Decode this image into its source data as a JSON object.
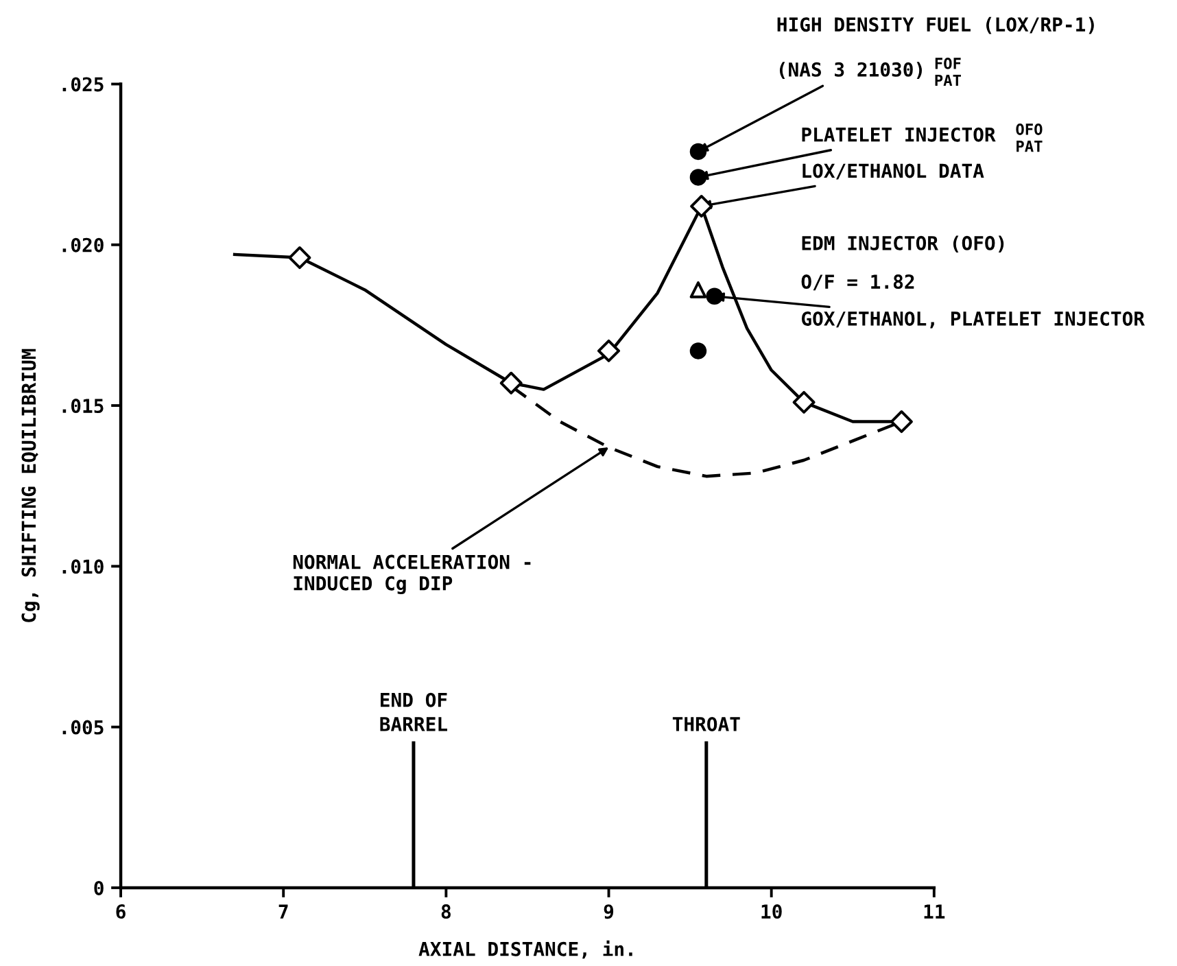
{
  "chart_data": {
    "type": "line",
    "xlabel": "AXIAL DISTANCE, in.",
    "ylabel": "Cg, SHIFTING EQUILIBRIUM",
    "xlim": [
      6,
      11
    ],
    "xticks": [
      6,
      7,
      8,
      9,
      10,
      11
    ],
    "ylim": [
      0,
      0.025
    ],
    "yticks": [
      {
        "value": 0,
        "label": "0"
      },
      {
        "value": 0.005,
        "label": ".005"
      },
      {
        "value": 0.01,
        "label": ".010"
      },
      {
        "value": 0.015,
        "label": ".015"
      },
      {
        "value": 0.02,
        "label": ".020"
      },
      {
        "value": 0.025,
        "label": ".025"
      }
    ],
    "grid": false,
    "series": [
      {
        "color": "#000000",
        "line_style": "solid",
        "marker": "none",
        "x": [
          6.7,
          7.1,
          7.5,
          8.0,
          8.4,
          8.6,
          9.0,
          9.3,
          9.57
        ],
        "values": [
          0.0197,
          0.0196,
          0.0186,
          0.0169,
          0.0157,
          0.0155,
          0.0166,
          0.0185,
          0.0212
        ]
      },
      {
        "color": "#000000",
        "line_style": "solid",
        "marker": "none",
        "x": [
          9.57,
          9.7,
          9.85,
          10.0,
          10.2,
          10.5,
          10.8
        ],
        "values": [
          0.0212,
          0.0193,
          0.0174,
          0.0161,
          0.0151,
          0.0145,
          0.0145
        ]
      },
      {
        "color": "#000000",
        "line_style": "dashed",
        "marker": "none",
        "x": [
          8.4,
          8.7,
          9.0,
          9.3,
          9.6,
          9.9,
          10.2,
          10.5,
          10.8
        ],
        "values": [
          0.0156,
          0.0145,
          0.0137,
          0.0131,
          0.0128,
          0.0129,
          0.0133,
          0.0139,
          0.0145
        ]
      },
      {
        "type": "scatter",
        "color": "#000000",
        "marker": "diamond",
        "x": [
          7.1,
          8.4,
          9.0,
          9.57,
          10.2,
          10.8
        ],
        "values": [
          0.0196,
          0.0157,
          0.0167,
          0.0212,
          0.0151,
          0.0145
        ]
      },
      {
        "type": "scatter",
        "color": "#000000",
        "marker": "circle",
        "x": [
          9.55,
          9.55,
          9.65
        ],
        "values": [
          0.0221,
          0.0167,
          0.0184
        ]
      },
      {
        "type": "scatter",
        "color": "#000000",
        "marker": "triangle",
        "x": [
          9.55
        ],
        "values": [
          0.0186
        ]
      },
      {
        "type": "scatter",
        "color": "#000000",
        "marker": "circle",
        "x": [
          9.55
        ],
        "values": [
          0.0229
        ]
      }
    ],
    "ref_lines": [
      {
        "axis": "x",
        "value": 7.8,
        "label": "END OF\nBARREL"
      },
      {
        "axis": "x",
        "value": 9.6,
        "label": "THROAT"
      }
    ],
    "annotations": [
      "HIGH DENSITY FUEL (LOX/RP-1)",
      {
        "text": "(NAS 3 21030)",
        "x": 9.55,
        "y": 0.0229
      },
      "FOF",
      "PAT",
      {
        "text": "PLATELET INJECTOR",
        "x": 9.55,
        "y": 0.0221
      },
      "OFO",
      "PAT",
      {
        "text": "LOX/ETHANOL DATA",
        "x": 9.57,
        "y": 0.0212
      },
      "EDM INJECTOR (OFO)",
      "O/F = 1.82",
      {
        "text": "GOX/ETHANOL, PLATELET INJECTOR",
        "x": 9.65,
        "y": 0.0184
      },
      {
        "text": "NORMAL ACCELERATION -\nINDUCED Cg DIP",
        "x": 9.0,
        "y": 0.0137
      }
    ]
  }
}
